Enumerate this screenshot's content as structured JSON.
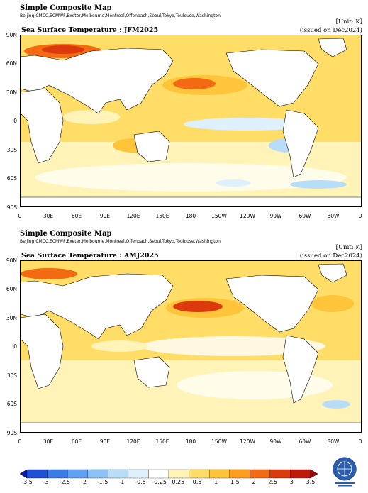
{
  "panels": [
    {
      "title": "Simple Composite Map",
      "sources": "Beijing,CMCC,ECMWF,Exeter,Melbourne,Montreal,Offenbach,Seoul,Tokyo,Toulouse,Washington",
      "unit": "[Unit: K]",
      "variable": "Sea Surface Temperature : JFM2025",
      "issued": "(issued on Dec2024)"
    },
    {
      "title": "Simple Composite Map",
      "sources": "Beijing,CMCC,ECMWF,Exeter,Melbourne,Montreal,Offenbach,Seoul,Tokyo,Toulouse,Washington",
      "unit": "[Unit: K]",
      "variable": "Sea Surface Temperature : AMJ2025",
      "issued": "(issued on Dec2024)"
    }
  ],
  "lat_labels": [
    "90N",
    "60N",
    "30N",
    "0",
    "30S",
    "60S",
    "90S"
  ],
  "lon_labels": [
    "0",
    "30E",
    "60E",
    "90E",
    "120E",
    "150E",
    "180",
    "150W",
    "120W",
    "90W",
    "60W",
    "30W",
    "0"
  ],
  "colorbar": {
    "labels": [
      "-3.5",
      "-3",
      "-2.5",
      "-2",
      "-1.5",
      "-1",
      "-0.5",
      "-0.25",
      "0.25",
      "0.5",
      "1",
      "1.5",
      "2",
      "2.5",
      "3",
      "3.5"
    ],
    "colors": [
      "#0a1db3",
      "#1f4fd6",
      "#3b7be8",
      "#5fa0f0",
      "#8cc2f5",
      "#b8ddf8",
      "#def0fb",
      "#ffffff",
      "#fff3b8",
      "#ffdd66",
      "#ffc43a",
      "#ff9d1f",
      "#f26a12",
      "#dc3a0c",
      "#c01a0a",
      "#9c0a08"
    ]
  }
}
